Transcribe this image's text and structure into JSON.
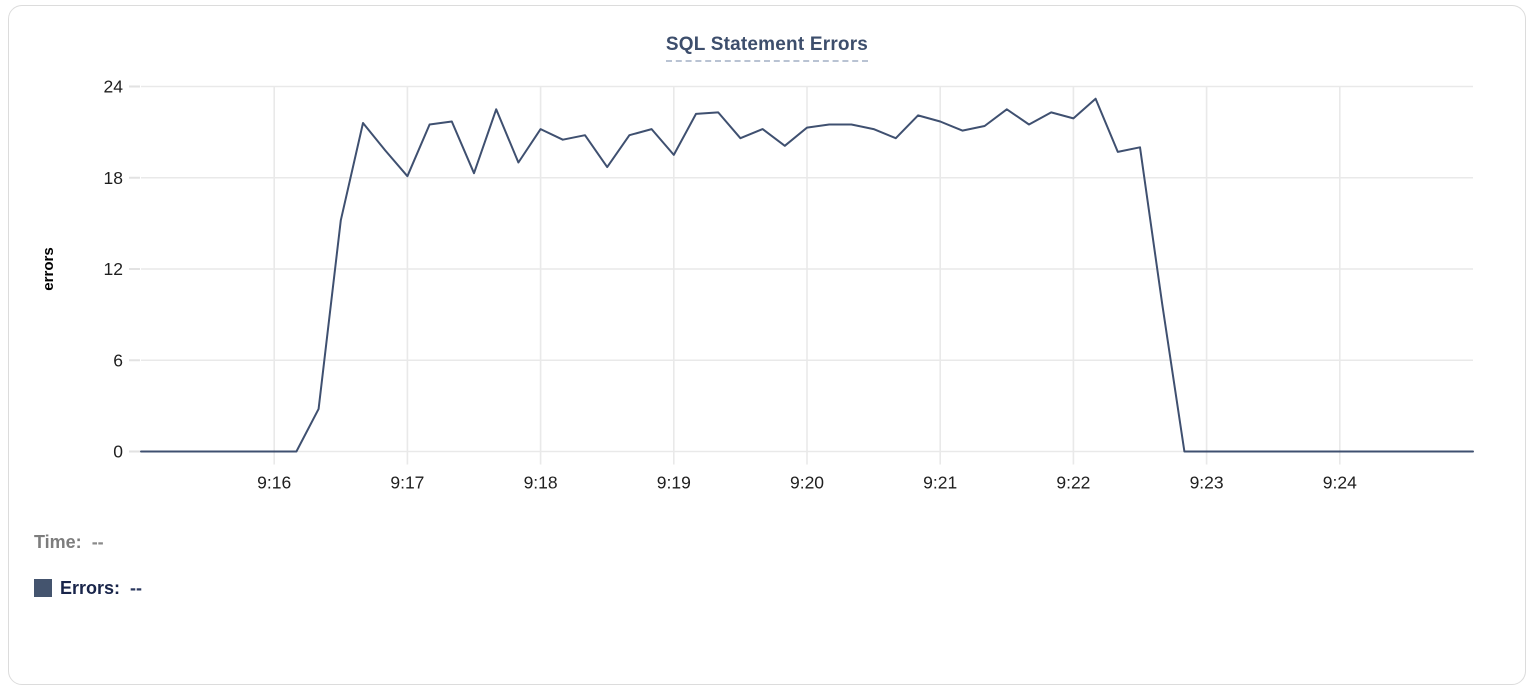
{
  "chart_data": {
    "type": "line",
    "title": "SQL Statement Errors",
    "xlabel": "",
    "ylabel": "errors",
    "ylim": [
      0,
      24
    ],
    "y_ticks": [
      0,
      6,
      12,
      18,
      24
    ],
    "x_range": [
      "9:15:00",
      "9:25:00"
    ],
    "x_tick_labels": [
      "9:16",
      "9:17",
      "9:18",
      "9:19",
      "9:20",
      "9:21",
      "9:22",
      "9:23",
      "9:24"
    ],
    "grid": true,
    "legend_position": "bottom-left",
    "x": [
      "9:15:00",
      "9:15:10",
      "9:15:20",
      "9:15:30",
      "9:15:40",
      "9:15:50",
      "9:16:00",
      "9:16:10",
      "9:16:20",
      "9:16:30",
      "9:16:40",
      "9:16:50",
      "9:17:00",
      "9:17:10",
      "9:17:20",
      "9:17:30",
      "9:17:40",
      "9:17:50",
      "9:18:00",
      "9:18:10",
      "9:18:20",
      "9:18:30",
      "9:18:40",
      "9:18:50",
      "9:19:00",
      "9:19:10",
      "9:19:20",
      "9:19:30",
      "9:19:40",
      "9:19:50",
      "9:20:00",
      "9:20:10",
      "9:20:20",
      "9:20:30",
      "9:20:40",
      "9:20:50",
      "9:21:00",
      "9:21:10",
      "9:21:20",
      "9:21:30",
      "9:21:40",
      "9:21:50",
      "9:22:00",
      "9:22:10",
      "9:22:20",
      "9:22:30",
      "9:22:40",
      "9:22:50",
      "9:23:00",
      "9:23:10",
      "9:23:20",
      "9:23:30",
      "9:23:40",
      "9:23:50",
      "9:24:00",
      "9:24:10",
      "9:24:20",
      "9:24:30",
      "9:24:40",
      "9:24:50",
      "9:25:00"
    ],
    "series": [
      {
        "name": "Errors",
        "color": "#3f5070",
        "values": [
          0,
          0,
          0,
          0,
          0,
          0,
          0,
          0,
          2.8,
          15.2,
          21.6,
          19.8,
          18.1,
          21.5,
          21.7,
          18.3,
          22.5,
          19,
          21.2,
          20.5,
          20.8,
          18.7,
          20.8,
          21.2,
          19.5,
          22.2,
          22.3,
          20.6,
          21.2,
          20.1,
          21.3,
          21.5,
          21.5,
          21.2,
          20.6,
          22.1,
          21.7,
          21.1,
          21.4,
          22.5,
          21.5,
          22.3,
          21.9,
          23.2,
          19.7,
          20,
          9.7,
          0,
          0,
          0,
          0,
          0,
          0,
          0,
          0,
          0,
          0,
          0,
          0,
          0,
          0
        ]
      }
    ]
  },
  "readout": {
    "time_label": "Time:",
    "time_value": "--",
    "errors_label": "Errors:",
    "errors_value": "--",
    "swatch_color": "#44546e"
  },
  "style_colors": {
    "title": "#3d4e6c",
    "title_underline": "#b9c3d3",
    "grid": "#e9e9e9",
    "axis_text": "#1f1f1f",
    "line": "#3f5070",
    "card_border": "#dcdcdc"
  }
}
